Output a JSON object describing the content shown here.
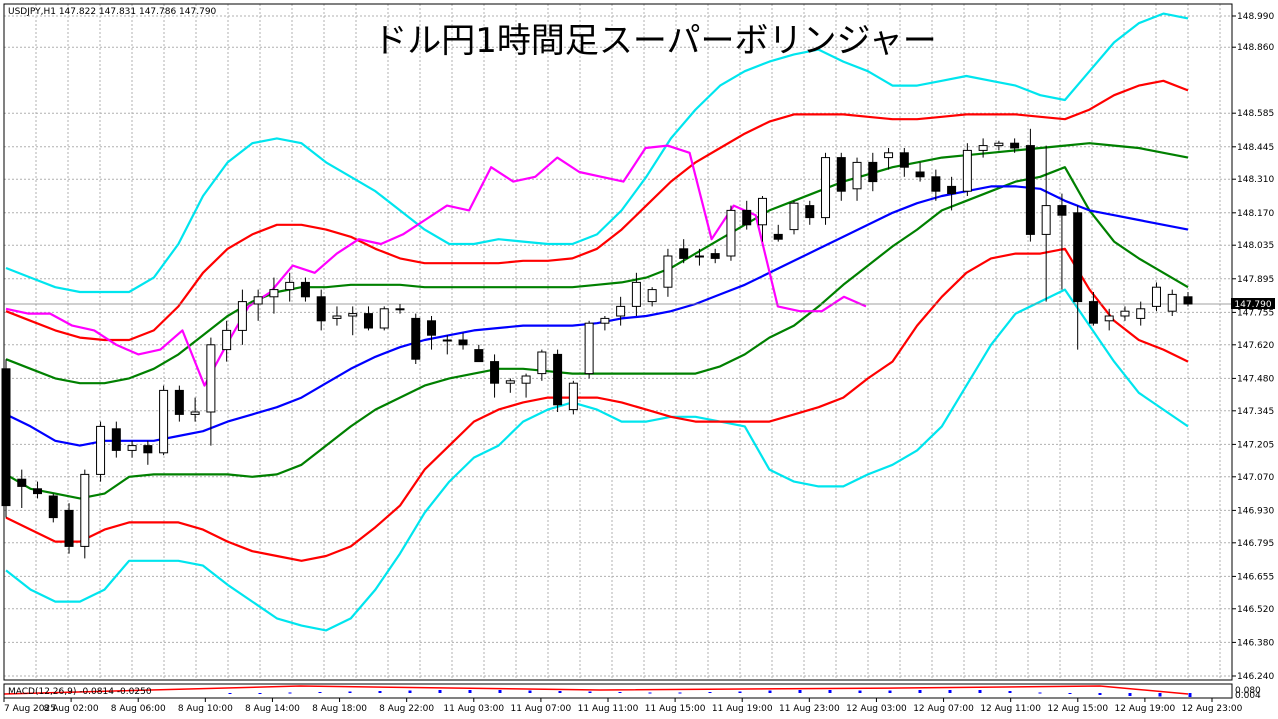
{
  "header": {
    "symbol_info": "USDJPY,H1  147.822 147.831 147.786 147.790",
    "title": "ドル円1時間足スーパーボリンジャー"
  },
  "macd": {
    "label": "MACD(12,26,9) -0.0814 -0.0250",
    "axis_labels": [
      "0.080",
      "0.004"
    ]
  },
  "current_price": {
    "label": "147.790",
    "value": 147.79
  },
  "chart_data": {
    "type": "candlestick",
    "y_ticks": [
      "148.990",
      "148.860",
      "148.585",
      "148.445",
      "148.310",
      "148.170",
      "148.035",
      "147.895",
      "147.755",
      "147.620",
      "147.480",
      "147.345",
      "147.205",
      "147.070",
      "146.930",
      "146.795",
      "146.655",
      "146.520",
      "146.380",
      "146.240"
    ],
    "ylim": [
      146.24,
      148.99
    ],
    "x_labels": [
      "7 Aug 2025",
      "8 Aug 02:00",
      "8 Aug 06:00",
      "8 Aug 10:00",
      "8 Aug 14:00",
      "8 Aug 18:00",
      "8 Aug 22:00",
      "11 Aug 03:00",
      "11 Aug 07:00",
      "11 Aug 11:00",
      "11 Aug 15:00",
      "11 Aug 19:00",
      "11 Aug 23:00",
      "12 Aug 03:00",
      "12 Aug 07:00",
      "12 Aug 11:00",
      "12 Aug 15:00",
      "12 Aug 19:00",
      "12 Aug 23:00"
    ],
    "grid": true,
    "candles": [
      [
        147.52,
        147.56,
        146.9,
        146.95
      ],
      [
        147.06,
        147.1,
        146.94,
        147.03
      ],
      [
        147.02,
        147.05,
        146.98,
        147.0
      ],
      [
        146.99,
        147.0,
        146.88,
        146.9
      ],
      [
        146.93,
        146.96,
        146.75,
        146.78
      ],
      [
        146.78,
        147.1,
        146.73,
        147.08
      ],
      [
        147.08,
        147.3,
        147.05,
        147.28
      ],
      [
        147.27,
        147.3,
        147.15,
        147.18
      ],
      [
        147.18,
        147.22,
        147.15,
        147.2
      ],
      [
        147.2,
        147.22,
        147.12,
        147.17
      ],
      [
        147.17,
        147.45,
        147.16,
        147.43
      ],
      [
        147.43,
        147.45,
        147.3,
        147.33
      ],
      [
        147.33,
        147.4,
        147.3,
        147.34
      ],
      [
        147.34,
        147.65,
        147.2,
        147.62
      ],
      [
        147.6,
        147.72,
        147.55,
        147.68
      ],
      [
        147.68,
        147.85,
        147.62,
        147.8
      ],
      [
        147.79,
        147.85,
        147.72,
        147.82
      ],
      [
        147.82,
        147.9,
        147.75,
        147.85
      ],
      [
        147.85,
        147.92,
        147.8,
        147.88
      ],
      [
        147.88,
        147.9,
        147.8,
        147.82
      ],
      [
        147.82,
        147.85,
        147.68,
        147.72
      ],
      [
        147.73,
        147.78,
        147.7,
        147.74
      ],
      [
        147.74,
        147.78,
        147.66,
        147.75
      ],
      [
        147.75,
        147.78,
        147.68,
        147.69
      ],
      [
        147.69,
        147.78,
        147.68,
        147.77
      ],
      [
        147.77,
        147.79,
        147.75,
        147.77
      ],
      [
        147.73,
        147.75,
        147.54,
        147.56
      ],
      [
        147.72,
        147.74,
        147.6,
        147.66
      ],
      [
        147.64,
        147.66,
        147.58,
        147.64
      ],
      [
        147.64,
        147.67,
        147.6,
        147.62
      ],
      [
        147.6,
        147.62,
        147.55,
        147.55
      ],
      [
        147.55,
        147.58,
        147.4,
        147.46
      ],
      [
        147.46,
        147.48,
        147.42,
        147.47
      ],
      [
        147.46,
        147.5,
        147.4,
        147.49
      ],
      [
        147.5,
        147.6,
        147.47,
        147.59
      ],
      [
        147.58,
        147.6,
        147.34,
        147.37
      ],
      [
        147.35,
        147.47,
        147.33,
        147.46
      ],
      [
        147.5,
        147.72,
        147.48,
        147.71
      ],
      [
        147.71,
        147.74,
        147.68,
        147.73
      ],
      [
        147.74,
        147.82,
        147.7,
        147.78
      ],
      [
        147.78,
        147.92,
        147.74,
        147.88
      ],
      [
        147.8,
        147.86,
        147.78,
        147.85
      ],
      [
        147.86,
        148.02,
        147.82,
        147.99
      ],
      [
        148.02,
        148.06,
        147.96,
        147.98
      ],
      [
        147.99,
        148.02,
        147.95,
        147.99
      ],
      [
        148.0,
        148.02,
        147.96,
        147.98
      ],
      [
        147.99,
        148.2,
        147.97,
        148.18
      ],
      [
        148.18,
        148.22,
        148.1,
        148.12
      ],
      [
        148.12,
        148.24,
        148.05,
        148.23
      ],
      [
        148.08,
        148.12,
        148.05,
        148.06
      ],
      [
        148.1,
        148.22,
        148.08,
        148.21
      ],
      [
        148.2,
        148.22,
        148.12,
        148.15
      ],
      [
        148.15,
        148.42,
        148.12,
        148.4
      ],
      [
        148.4,
        148.42,
        148.22,
        148.26
      ],
      [
        148.27,
        148.4,
        148.22,
        148.38
      ],
      [
        148.38,
        148.42,
        148.26,
        148.3
      ],
      [
        148.4,
        148.44,
        148.35,
        148.42
      ],
      [
        148.42,
        148.44,
        148.32,
        148.36
      ],
      [
        148.34,
        148.38,
        148.3,
        148.32
      ],
      [
        148.32,
        148.35,
        148.22,
        148.26
      ],
      [
        148.28,
        148.32,
        148.18,
        148.25
      ],
      [
        148.26,
        148.46,
        148.24,
        148.43
      ],
      [
        148.43,
        148.48,
        148.4,
        148.45
      ],
      [
        148.45,
        148.47,
        148.43,
        148.46
      ],
      [
        148.46,
        148.48,
        148.42,
        148.44
      ],
      [
        148.45,
        148.52,
        148.05,
        148.08
      ],
      [
        148.08,
        148.45,
        147.8,
        148.2
      ],
      [
        148.2,
        148.25,
        147.85,
        148.16
      ],
      [
        148.17,
        148.2,
        147.6,
        147.8
      ],
      [
        147.8,
        147.84,
        147.7,
        147.71
      ],
      [
        147.72,
        147.77,
        147.68,
        147.74
      ],
      [
        147.74,
        147.78,
        147.72,
        147.76
      ],
      [
        147.73,
        147.8,
        147.7,
        147.77
      ],
      [
        147.78,
        147.88,
        147.76,
        147.86
      ],
      [
        147.76,
        147.85,
        147.74,
        147.83
      ],
      [
        147.82,
        147.84,
        147.78,
        147.79
      ]
    ],
    "series": [
      {
        "name": "",
        "color": "#00e5ee",
        "values": [
          146.68,
          146.6,
          146.55,
          146.55,
          146.6,
          146.72,
          146.72,
          146.72,
          146.7,
          146.62,
          146.55,
          146.48,
          146.45,
          146.43,
          146.48,
          146.6,
          146.75,
          146.92,
          147.05,
          147.15,
          147.2,
          147.3,
          147.35,
          147.38,
          147.35,
          147.3,
          147.3,
          147.32,
          147.32,
          147.3,
          147.28,
          147.1,
          147.05,
          147.03,
          147.03,
          147.08,
          147.12,
          147.18,
          147.28,
          147.45,
          147.62,
          147.75,
          147.8,
          147.85,
          147.7,
          147.55,
          147.42,
          147.35,
          147.28
        ]
      },
      {
        "name": "",
        "color": "#ff0000",
        "values": [
          146.9,
          146.85,
          146.8,
          146.8,
          146.85,
          146.88,
          146.88,
          146.88,
          146.85,
          146.8,
          146.76,
          146.74,
          146.72,
          146.74,
          146.78,
          146.86,
          146.95,
          147.1,
          147.2,
          147.3,
          147.35,
          147.38,
          147.4,
          147.4,
          147.4,
          147.38,
          147.35,
          147.32,
          147.3,
          147.3,
          147.3,
          147.3,
          147.33,
          147.36,
          147.4,
          147.48,
          147.55,
          147.7,
          147.82,
          147.92,
          147.98,
          148.0,
          148.0,
          148.02,
          147.85,
          147.72,
          147.64,
          147.6,
          147.55
        ]
      },
      {
        "name": "",
        "color": "#008000",
        "values": [
          147.08,
          147.02,
          147.0,
          146.98,
          147.0,
          147.07,
          147.08,
          147.08,
          147.08,
          147.08,
          147.07,
          147.08,
          147.12,
          147.2,
          147.28,
          147.35,
          147.4,
          147.45,
          147.48,
          147.5,
          147.52,
          147.52,
          147.51,
          147.5,
          147.5,
          147.5,
          147.5,
          147.5,
          147.5,
          147.53,
          147.58,
          147.65,
          147.7,
          147.78,
          147.87,
          147.95,
          148.03,
          148.1,
          148.18,
          148.22,
          148.26,
          148.3,
          148.32,
          148.36,
          148.18,
          148.05,
          147.98,
          147.92,
          147.86
        ]
      },
      {
        "name": "",
        "color": "#0000ff",
        "values": [
          147.33,
          147.28,
          147.22,
          147.2,
          147.22,
          147.22,
          147.22,
          147.24,
          147.26,
          147.3,
          147.33,
          147.36,
          147.4,
          147.46,
          147.52,
          147.57,
          147.61,
          147.64,
          147.66,
          147.68,
          147.69,
          147.7,
          147.7,
          147.7,
          147.71,
          147.73,
          147.74,
          147.76,
          147.79,
          147.83,
          147.87,
          147.92,
          147.97,
          148.02,
          148.07,
          148.12,
          148.17,
          148.21,
          148.24,
          148.26,
          148.28,
          148.28,
          148.27,
          148.22,
          148.18,
          148.16,
          148.14,
          148.12,
          148.1
        ]
      },
      {
        "name": "",
        "color": "#008000",
        "values": [
          147.56,
          147.52,
          147.48,
          147.46,
          147.46,
          147.48,
          147.52,
          147.58,
          147.66,
          147.74,
          147.8,
          147.84,
          147.86,
          147.86,
          147.87,
          147.87,
          147.87,
          147.86,
          147.86,
          147.86,
          147.86,
          147.86,
          147.86,
          147.86,
          147.87,
          147.88,
          147.9,
          147.94,
          148.0,
          148.06,
          148.12,
          148.18,
          148.22,
          148.26,
          148.3,
          148.33,
          148.36,
          148.38,
          148.4,
          148.41,
          148.42,
          148.43,
          148.44,
          148.45,
          148.46,
          148.45,
          148.44,
          148.42,
          148.4
        ]
      },
      {
        "name": "",
        "color": "#ff0000",
        "values": [
          147.76,
          147.72,
          147.68,
          147.65,
          147.64,
          147.64,
          147.68,
          147.78,
          147.92,
          148.02,
          148.08,
          148.12,
          148.12,
          148.1,
          148.07,
          148.02,
          147.98,
          147.96,
          147.96,
          147.96,
          147.96,
          147.97,
          147.97,
          147.98,
          148.02,
          148.1,
          148.2,
          148.3,
          148.38,
          148.44,
          148.5,
          148.55,
          148.58,
          148.58,
          148.58,
          148.57,
          148.56,
          148.56,
          148.57,
          148.58,
          148.58,
          148.58,
          148.57,
          148.56,
          148.6,
          148.66,
          148.7,
          148.72,
          148.68
        ]
      },
      {
        "name": "",
        "color": "#00e5ee",
        "values": [
          147.94,
          147.9,
          147.86,
          147.84,
          147.84,
          147.84,
          147.9,
          148.04,
          148.24,
          148.38,
          148.46,
          148.48,
          148.46,
          148.38,
          148.32,
          148.26,
          148.18,
          148.1,
          148.04,
          148.04,
          148.06,
          148.05,
          148.04,
          148.04,
          148.08,
          148.18,
          148.32,
          148.48,
          148.6,
          148.7,
          148.76,
          148.8,
          148.83,
          148.85,
          148.8,
          148.76,
          148.7,
          148.7,
          148.72,
          148.74,
          148.72,
          148.7,
          148.66,
          148.64,
          148.76,
          148.88,
          148.96,
          149.0,
          148.98
        ]
      },
      {
        "name": "",
        "color": "#ff00ff",
        "values": [
          147.77,
          147.75,
          147.75,
          147.7,
          147.68,
          147.62,
          147.58,
          147.6,
          147.68,
          147.45,
          147.62,
          147.78,
          147.84,
          147.95,
          147.92,
          148.0,
          148.06,
          148.04,
          148.08,
          148.14,
          148.2,
          148.18,
          148.36,
          148.3,
          148.32,
          148.4,
          148.34,
          148.32,
          148.3,
          148.44,
          148.45,
          148.42,
          148.06,
          148.2,
          148.16,
          147.78,
          147.76,
          147.76,
          147.82,
          147.78
        ]
      },
      {
        "name": "MACD(12,26,9)",
        "color": "#0000ff",
        "values": [
          -0.02,
          -0.01,
          0.01,
          0.02,
          0.03,
          0.04,
          0.05,
          0.06,
          0.06,
          0.06,
          0.05,
          0.04,
          0.03,
          0.02,
          0.01,
          0.01,
          0.02,
          0.03,
          0.05,
          0.06,
          0.06,
          0.05,
          0.05,
          0.06,
          0.06,
          0.06,
          0.04,
          0.01,
          -0.02,
          -0.04,
          -0.06,
          -0.07,
          -0.08
        ]
      }
    ]
  }
}
